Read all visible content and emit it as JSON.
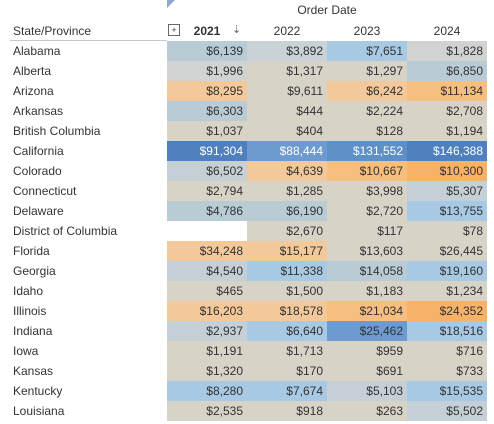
{
  "title": "Order Date",
  "row_header": "State/Province",
  "years": [
    "2021",
    "2022",
    "2023",
    "2024"
  ],
  "colors": {
    "tan": "#d8d3c7",
    "orange_light": "#f3c89a",
    "orange": "#f6be7f",
    "orange_strong": "#f7b26a",
    "blue_pale": "#b9ccd6",
    "blue_light": "#a7c9e3",
    "blue_mid": "#8fbbe0",
    "blue_strong": "#6d9bcf",
    "blue_dark": "#4f7fbd"
  },
  "rows": [
    {
      "name": "Alabama",
      "values": [
        [
          "$6,139",
          "#b9ccd6"
        ],
        [
          "$3,892",
          "#c9d2d6"
        ],
        [
          "$7,651",
          "#a7c9e3"
        ],
        [
          "$1,828",
          "#d0d3d1"
        ]
      ]
    },
    {
      "name": "Alberta",
      "values": [
        [
          "$1,996",
          "#cfd3d1"
        ],
        [
          "$1,317",
          "#d8d3c7"
        ],
        [
          "$1,297",
          "#d8d3c7"
        ],
        [
          "$6,850",
          "#b9ccd6"
        ]
      ]
    },
    {
      "name": "Arizona",
      "values": [
        [
          "$8,295",
          "#f3c89a"
        ],
        [
          "$9,611",
          "#d8d3c7"
        ],
        [
          "$6,242",
          "#f3c89a"
        ],
        [
          "$11,134",
          "#f6be7f"
        ]
      ]
    },
    {
      "name": "Arkansas",
      "values": [
        [
          "$6,303",
          "#b9ccd6"
        ],
        [
          "$444",
          "#d8d3c7"
        ],
        [
          "$2,224",
          "#d8d3c7"
        ],
        [
          "$2,708",
          "#d8d3c7"
        ]
      ]
    },
    {
      "name": "British Columbia",
      "values": [
        [
          "$1,037",
          "#d8d3c7"
        ],
        [
          "$404",
          "#d8d3c7"
        ],
        [
          "$128",
          "#d8d3c7"
        ],
        [
          "$1,194",
          "#d8d3c7"
        ]
      ]
    },
    {
      "name": "California",
      "values": [
        [
          "$91,304",
          "#4f7fbd"
        ],
        [
          "$88,444",
          "#6d9bcf"
        ],
        [
          "$131,552",
          "#5f8fc7"
        ],
        [
          "$146,388",
          "#4f7fbd"
        ]
      ],
      "light": true
    },
    {
      "name": "Colorado",
      "values": [
        [
          "$6,502",
          "#c4d0d6"
        ],
        [
          "$4,639",
          "#f3c89a"
        ],
        [
          "$10,667",
          "#f6be7f"
        ],
        [
          "$10,300",
          "#f7b26a"
        ]
      ]
    },
    {
      "name": "Connecticut",
      "values": [
        [
          "$2,794",
          "#d8d3c7"
        ],
        [
          "$1,285",
          "#d8d3c7"
        ],
        [
          "$3,998",
          "#d8d3c7"
        ],
        [
          "$5,307",
          "#c4d0d6"
        ]
      ]
    },
    {
      "name": "Delaware",
      "values": [
        [
          "$4,786",
          "#b9ccd6"
        ],
        [
          "$6,190",
          "#b9ccd6"
        ],
        [
          "$2,720",
          "#d8d3c7"
        ],
        [
          "$13,755",
          "#a7c9e3"
        ]
      ]
    },
    {
      "name": "District of Columbia",
      "values": [
        [
          "",
          "#ffffff"
        ],
        [
          "$2,670",
          "#d8d3c7"
        ],
        [
          "$117",
          "#d8d3c7"
        ],
        [
          "$78",
          "#d8d3c7"
        ]
      ]
    },
    {
      "name": "Florida",
      "values": [
        [
          "$34,248",
          "#f3c89a"
        ],
        [
          "$15,177",
          "#f3c89a"
        ],
        [
          "$13,603",
          "#d8d3c7"
        ],
        [
          "$26,445",
          "#d8d3c7"
        ]
      ]
    },
    {
      "name": "Georgia",
      "values": [
        [
          "$4,540",
          "#c4d0d6"
        ],
        [
          "$11,338",
          "#a7c9e3"
        ],
        [
          "$14,058",
          "#b9ccd6"
        ],
        [
          "$19,160",
          "#a7c9e3"
        ]
      ]
    },
    {
      "name": "Idaho",
      "values": [
        [
          "$465",
          "#d8d3c7"
        ],
        [
          "$1,500",
          "#d8d3c7"
        ],
        [
          "$1,183",
          "#d8d3c7"
        ],
        [
          "$1,234",
          "#d8d3c7"
        ]
      ]
    },
    {
      "name": "Illinois",
      "values": [
        [
          "$16,203",
          "#f3c89a"
        ],
        [
          "$18,578",
          "#f3c89a"
        ],
        [
          "$21,034",
          "#f6be7f"
        ],
        [
          "$24,352",
          "#f7b26a"
        ]
      ]
    },
    {
      "name": "Indiana",
      "values": [
        [
          "$2,937",
          "#c4d0d6"
        ],
        [
          "$6,640",
          "#a7c9e3"
        ],
        [
          "$25,462",
          "#6d9bcf"
        ],
        [
          "$18,516",
          "#a7c9e3"
        ]
      ]
    },
    {
      "name": "Iowa",
      "values": [
        [
          "$1,191",
          "#d8d3c7"
        ],
        [
          "$1,713",
          "#d8d3c7"
        ],
        [
          "$959",
          "#d8d3c7"
        ],
        [
          "$716",
          "#d8d3c7"
        ]
      ]
    },
    {
      "name": "Kansas",
      "values": [
        [
          "$1,320",
          "#d8d3c7"
        ],
        [
          "$170",
          "#d8d3c7"
        ],
        [
          "$691",
          "#d8d3c7"
        ],
        [
          "$733",
          "#d8d3c7"
        ]
      ]
    },
    {
      "name": "Kentucky",
      "values": [
        [
          "$8,280",
          "#a7c9e3"
        ],
        [
          "$7,674",
          "#a7c9e3"
        ],
        [
          "$5,103",
          "#c4d0d6"
        ],
        [
          "$15,535",
          "#a7c9e3"
        ]
      ]
    },
    {
      "name": "Louisiana",
      "values": [
        [
          "$2,535",
          "#d8d3c7"
        ],
        [
          "$918",
          "#d8d3c7"
        ],
        [
          "$263",
          "#d8d3c7"
        ],
        [
          "$5,502",
          "#c4d0d6"
        ]
      ]
    }
  ]
}
